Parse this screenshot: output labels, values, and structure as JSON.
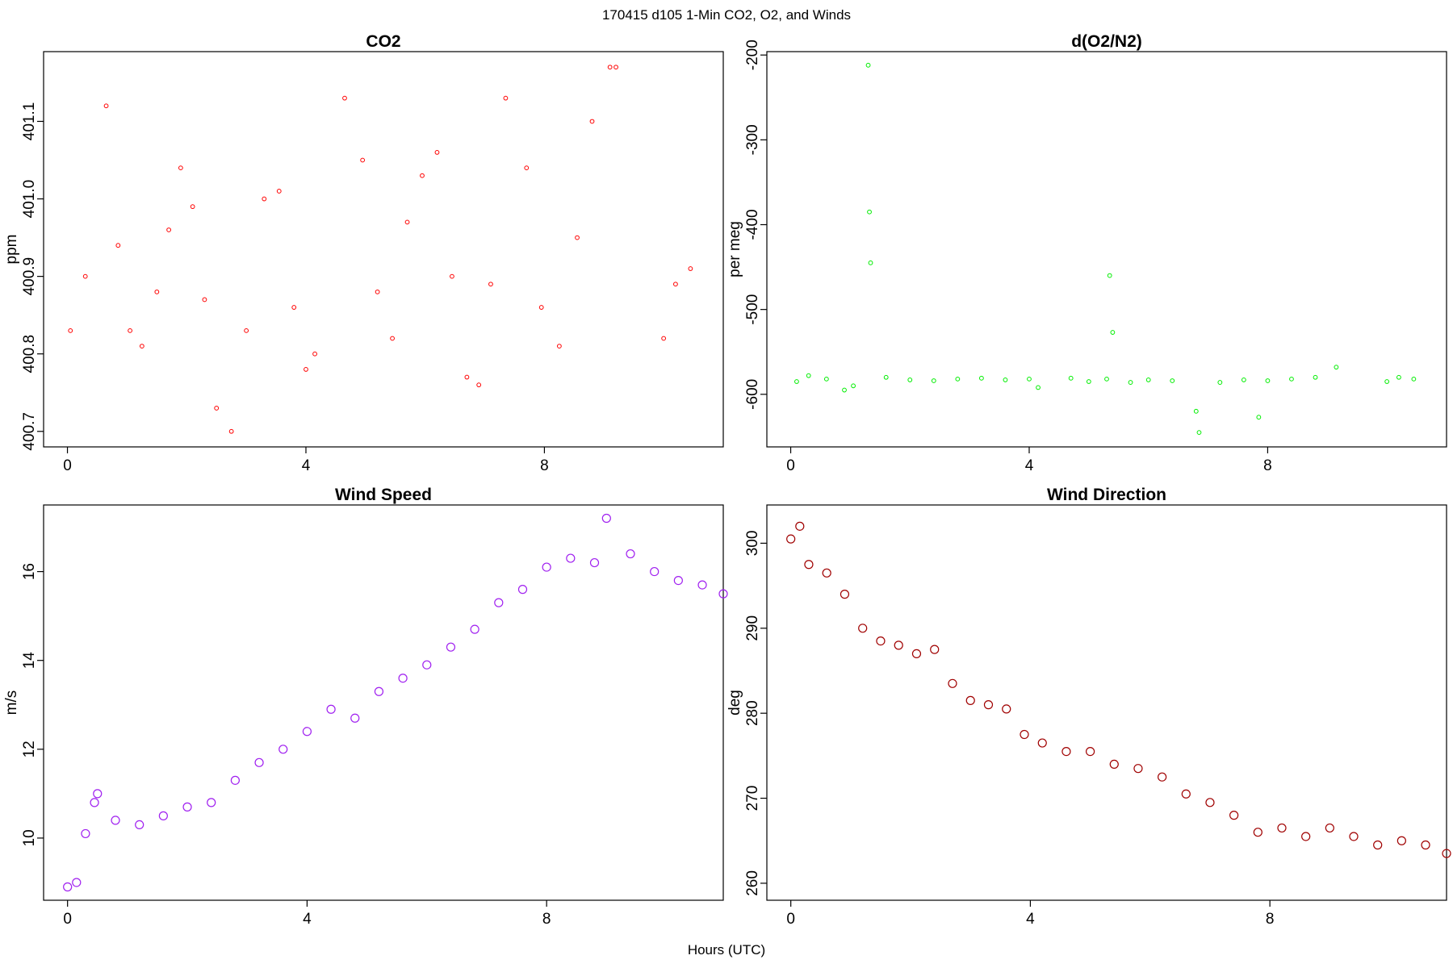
{
  "suptitle": "170415   d105   1-Min CO2, O2, and Winds",
  "xlabel": "Hours (UTC)",
  "chart_data": [
    {
      "type": "scatter",
      "title": "CO2",
      "ylabel": "ppm",
      "xlim": [
        -0.4,
        11.0
      ],
      "ylim": [
        400.68,
        401.19
      ],
      "xticks": [
        0,
        4,
        8
      ],
      "yticks": [
        400.7,
        400.8,
        400.9,
        401.0,
        401.1
      ],
      "xticklabels": [
        "0",
        "4",
        "8"
      ],
      "yticklabels": [
        "400.7",
        "400.8",
        "400.9",
        "401.0",
        "401.1"
      ],
      "color": "#ff0000",
      "grid": false,
      "x": [
        0.05,
        0.3,
        0.65,
        0.85,
        1.05,
        1.25,
        1.5,
        1.7,
        1.9,
        2.1,
        2.3,
        2.5,
        2.75,
        3.0,
        3.3,
        3.55,
        3.8,
        4.0,
        4.15,
        4.65,
        4.95,
        5.2,
        5.45,
        5.7,
        5.95,
        6.2,
        6.45,
        6.7,
        6.9,
        7.1,
        7.35,
        7.7,
        7.95,
        8.25,
        8.55,
        8.8,
        9.1,
        9.2,
        10.0,
        10.2,
        10.45
      ],
      "y": [
        400.83,
        400.9,
        401.12,
        400.94,
        400.83,
        400.81,
        400.88,
        400.96,
        401.04,
        400.99,
        400.87,
        400.73,
        400.7,
        400.83,
        401.0,
        401.01,
        400.86,
        400.78,
        400.8,
        401.13,
        401.05,
        400.88,
        400.82,
        400.97,
        401.03,
        401.06,
        400.9,
        400.77,
        400.76,
        400.89,
        401.13,
        401.04,
        400.86,
        400.81,
        400.95,
        401.1,
        401.17,
        401.17,
        400.82,
        400.89,
        400.91
      ]
    },
    {
      "type": "scatter",
      "title": "d(O2/N2)",
      "ylabel": "per meg",
      "xlim": [
        -0.4,
        11.0
      ],
      "ylim": [
        -662,
        -196
      ],
      "xticks": [
        0,
        4,
        8
      ],
      "yticks": [
        -200,
        -300,
        -400,
        -500,
        -600
      ],
      "xticklabels": [
        "0",
        "4",
        "8"
      ],
      "yticklabels": [
        "-200",
        "-300",
        "-400",
        "-500",
        "-600"
      ],
      "color": "#00ee00",
      "grid": false,
      "x": [
        0.1,
        0.3,
        0.6,
        0.9,
        1.05,
        1.3,
        1.32,
        1.34,
        1.6,
        2.0,
        2.4,
        2.8,
        3.2,
        3.6,
        4.0,
        4.15,
        4.7,
        5.0,
        5.3,
        5.35,
        5.4,
        5.7,
        6.0,
        6.4,
        6.8,
        6.85,
        7.2,
        7.6,
        7.85,
        8.0,
        8.4,
        8.8,
        9.15,
        10.0,
        10.2,
        10.45
      ],
      "y": [
        -585,
        -578,
        -582,
        -595,
        -590,
        -212,
        -385,
        -445,
        -580,
        -583,
        -584,
        -582,
        -581,
        -583,
        -582,
        -592,
        -581,
        -585,
        -582,
        -460,
        -527,
        -586,
        -583,
        -584,
        -620,
        -645,
        -586,
        -583,
        -627,
        -584,
        -582,
        -580,
        -568,
        -585,
        -580,
        -582
      ]
    },
    {
      "type": "scatter",
      "title": "Wind Speed",
      "ylabel": "m/s",
      "xlim": [
        -0.4,
        10.95
      ],
      "ylim": [
        8.6,
        17.5
      ],
      "xticks": [
        0,
        4,
        8
      ],
      "yticks": [
        10,
        12,
        14,
        16
      ],
      "xticklabels": [
        "0",
        "4",
        "8"
      ],
      "yticklabels": [
        "10",
        "12",
        "14",
        "16"
      ],
      "color": "#a020f0",
      "grid": false,
      "x": [
        0.0,
        0.15,
        0.3,
        0.45,
        0.5,
        0.8,
        1.2,
        1.6,
        2.0,
        2.4,
        2.8,
        3.2,
        3.6,
        4.0,
        4.4,
        4.8,
        5.2,
        5.6,
        6.0,
        6.4,
        6.8,
        7.2,
        7.6,
        8.0,
        8.4,
        8.8,
        9.0,
        9.4,
        9.8,
        10.2,
        10.6,
        10.95
      ],
      "y": [
        8.9,
        9.0,
        10.1,
        10.8,
        11.0,
        10.4,
        10.3,
        10.5,
        10.7,
        10.8,
        11.3,
        11.7,
        12.0,
        12.4,
        12.9,
        12.7,
        13.3,
        13.6,
        13.9,
        14.3,
        14.7,
        15.3,
        15.6,
        16.1,
        16.3,
        16.2,
        17.2,
        16.4,
        16.0,
        15.8,
        15.7,
        15.5
      ]
    },
    {
      "type": "scatter",
      "title": "Wind Direction",
      "ylabel": "deg",
      "xlim": [
        -0.4,
        10.95
      ],
      "ylim": [
        258,
        304.5
      ],
      "xticks": [
        0,
        4,
        8
      ],
      "yticks": [
        260,
        270,
        280,
        290,
        300
      ],
      "xticklabels": [
        "0",
        "4",
        "8"
      ],
      "yticklabels": [
        "260",
        "270",
        "280",
        "290",
        "300"
      ],
      "color": "#a00000",
      "grid": false,
      "x": [
        0.0,
        0.15,
        0.3,
        0.6,
        0.9,
        1.2,
        1.5,
        1.8,
        2.1,
        2.4,
        2.7,
        3.0,
        3.3,
        3.6,
        3.9,
        4.2,
        4.6,
        5.0,
        5.4,
        5.8,
        6.2,
        6.6,
        7.0,
        7.4,
        7.8,
        8.2,
        8.6,
        9.0,
        9.4,
        9.8,
        10.2,
        10.6,
        10.95
      ],
      "y": [
        300.5,
        302.0,
        297.5,
        296.5,
        294.0,
        290.0,
        288.5,
        288.0,
        287.0,
        287.5,
        283.5,
        281.5,
        281.0,
        280.5,
        277.5,
        276.5,
        275.5,
        275.5,
        274.0,
        273.5,
        272.5,
        270.5,
        269.5,
        268.0,
        266.0,
        266.5,
        265.5,
        266.5,
        265.5,
        264.5,
        265.0,
        264.5,
        263.5
      ]
    }
  ]
}
